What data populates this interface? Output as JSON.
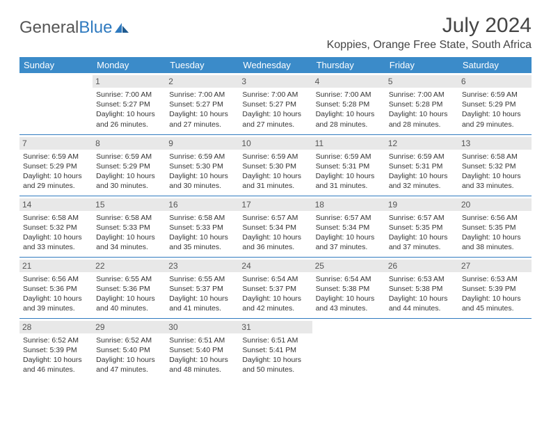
{
  "brand": {
    "part1": "General",
    "part2": "Blue"
  },
  "title": "July 2024",
  "location": "Koppies, Orange Free State, South Africa",
  "colors": {
    "header_bg": "#3b8bc9",
    "header_text": "#ffffff",
    "daynum_bg": "#e8e8e8",
    "border": "#2f7abf",
    "logo_blue": "#2f7abf"
  },
  "weekdays": [
    "Sunday",
    "Monday",
    "Tuesday",
    "Wednesday",
    "Thursday",
    "Friday",
    "Saturday"
  ],
  "cells": [
    {
      "n": "",
      "s": "",
      "t": "",
      "d": "",
      "e": true
    },
    {
      "n": "1",
      "s": "Sunrise: 7:00 AM",
      "t": "Sunset: 5:27 PM",
      "d": "Daylight: 10 hours and 26 minutes."
    },
    {
      "n": "2",
      "s": "Sunrise: 7:00 AM",
      "t": "Sunset: 5:27 PM",
      "d": "Daylight: 10 hours and 27 minutes."
    },
    {
      "n": "3",
      "s": "Sunrise: 7:00 AM",
      "t": "Sunset: 5:27 PM",
      "d": "Daylight: 10 hours and 27 minutes."
    },
    {
      "n": "4",
      "s": "Sunrise: 7:00 AM",
      "t": "Sunset: 5:28 PM",
      "d": "Daylight: 10 hours and 28 minutes."
    },
    {
      "n": "5",
      "s": "Sunrise: 7:00 AM",
      "t": "Sunset: 5:28 PM",
      "d": "Daylight: 10 hours and 28 minutes."
    },
    {
      "n": "6",
      "s": "Sunrise: 6:59 AM",
      "t": "Sunset: 5:29 PM",
      "d": "Daylight: 10 hours and 29 minutes."
    },
    {
      "n": "7",
      "s": "Sunrise: 6:59 AM",
      "t": "Sunset: 5:29 PM",
      "d": "Daylight: 10 hours and 29 minutes."
    },
    {
      "n": "8",
      "s": "Sunrise: 6:59 AM",
      "t": "Sunset: 5:29 PM",
      "d": "Daylight: 10 hours and 30 minutes."
    },
    {
      "n": "9",
      "s": "Sunrise: 6:59 AM",
      "t": "Sunset: 5:30 PM",
      "d": "Daylight: 10 hours and 30 minutes."
    },
    {
      "n": "10",
      "s": "Sunrise: 6:59 AM",
      "t": "Sunset: 5:30 PM",
      "d": "Daylight: 10 hours and 31 minutes."
    },
    {
      "n": "11",
      "s": "Sunrise: 6:59 AM",
      "t": "Sunset: 5:31 PM",
      "d": "Daylight: 10 hours and 31 minutes."
    },
    {
      "n": "12",
      "s": "Sunrise: 6:59 AM",
      "t": "Sunset: 5:31 PM",
      "d": "Daylight: 10 hours and 32 minutes."
    },
    {
      "n": "13",
      "s": "Sunrise: 6:58 AM",
      "t": "Sunset: 5:32 PM",
      "d": "Daylight: 10 hours and 33 minutes."
    },
    {
      "n": "14",
      "s": "Sunrise: 6:58 AM",
      "t": "Sunset: 5:32 PM",
      "d": "Daylight: 10 hours and 33 minutes."
    },
    {
      "n": "15",
      "s": "Sunrise: 6:58 AM",
      "t": "Sunset: 5:33 PM",
      "d": "Daylight: 10 hours and 34 minutes."
    },
    {
      "n": "16",
      "s": "Sunrise: 6:58 AM",
      "t": "Sunset: 5:33 PM",
      "d": "Daylight: 10 hours and 35 minutes."
    },
    {
      "n": "17",
      "s": "Sunrise: 6:57 AM",
      "t": "Sunset: 5:34 PM",
      "d": "Daylight: 10 hours and 36 minutes."
    },
    {
      "n": "18",
      "s": "Sunrise: 6:57 AM",
      "t": "Sunset: 5:34 PM",
      "d": "Daylight: 10 hours and 37 minutes."
    },
    {
      "n": "19",
      "s": "Sunrise: 6:57 AM",
      "t": "Sunset: 5:35 PM",
      "d": "Daylight: 10 hours and 37 minutes."
    },
    {
      "n": "20",
      "s": "Sunrise: 6:56 AM",
      "t": "Sunset: 5:35 PM",
      "d": "Daylight: 10 hours and 38 minutes."
    },
    {
      "n": "21",
      "s": "Sunrise: 6:56 AM",
      "t": "Sunset: 5:36 PM",
      "d": "Daylight: 10 hours and 39 minutes."
    },
    {
      "n": "22",
      "s": "Sunrise: 6:55 AM",
      "t": "Sunset: 5:36 PM",
      "d": "Daylight: 10 hours and 40 minutes."
    },
    {
      "n": "23",
      "s": "Sunrise: 6:55 AM",
      "t": "Sunset: 5:37 PM",
      "d": "Daylight: 10 hours and 41 minutes."
    },
    {
      "n": "24",
      "s": "Sunrise: 6:54 AM",
      "t": "Sunset: 5:37 PM",
      "d": "Daylight: 10 hours and 42 minutes."
    },
    {
      "n": "25",
      "s": "Sunrise: 6:54 AM",
      "t": "Sunset: 5:38 PM",
      "d": "Daylight: 10 hours and 43 minutes."
    },
    {
      "n": "26",
      "s": "Sunrise: 6:53 AM",
      "t": "Sunset: 5:38 PM",
      "d": "Daylight: 10 hours and 44 minutes."
    },
    {
      "n": "27",
      "s": "Sunrise: 6:53 AM",
      "t": "Sunset: 5:39 PM",
      "d": "Daylight: 10 hours and 45 minutes."
    },
    {
      "n": "28",
      "s": "Sunrise: 6:52 AM",
      "t": "Sunset: 5:39 PM",
      "d": "Daylight: 10 hours and 46 minutes."
    },
    {
      "n": "29",
      "s": "Sunrise: 6:52 AM",
      "t": "Sunset: 5:40 PM",
      "d": "Daylight: 10 hours and 47 minutes."
    },
    {
      "n": "30",
      "s": "Sunrise: 6:51 AM",
      "t": "Sunset: 5:40 PM",
      "d": "Daylight: 10 hours and 48 minutes."
    },
    {
      "n": "31",
      "s": "Sunrise: 6:51 AM",
      "t": "Sunset: 5:41 PM",
      "d": "Daylight: 10 hours and 50 minutes."
    },
    {
      "n": "",
      "s": "",
      "t": "",
      "d": "",
      "e": true
    },
    {
      "n": "",
      "s": "",
      "t": "",
      "d": "",
      "e": true
    },
    {
      "n": "",
      "s": "",
      "t": "",
      "d": "",
      "e": true
    }
  ]
}
